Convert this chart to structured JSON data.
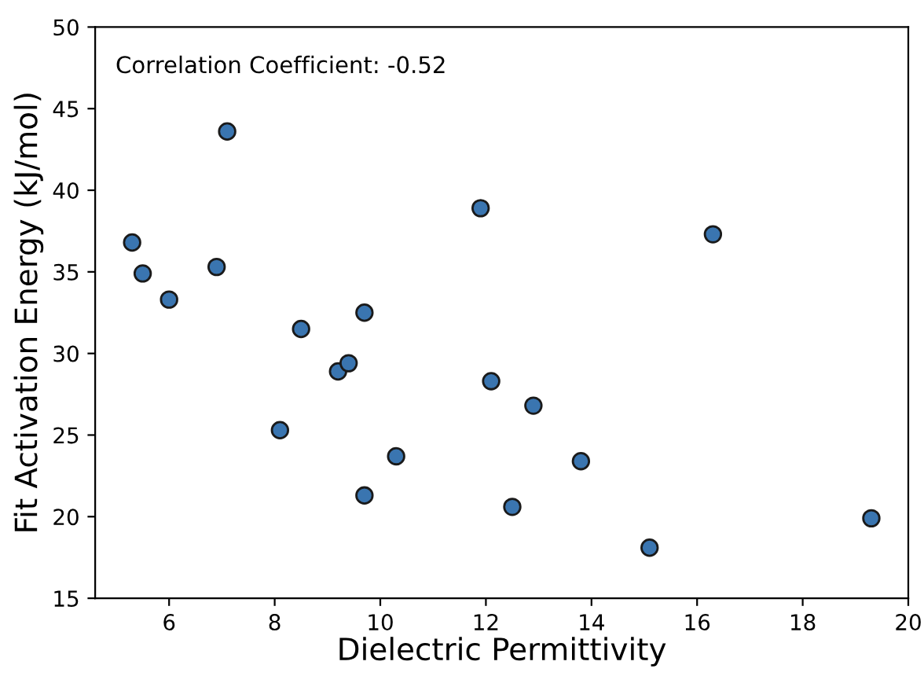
{
  "chart_data": {
    "type": "scatter",
    "xlabel": "Dielectric Permittivity",
    "ylabel": "Fit Activation Energy (kJ/mol)",
    "annotations": [
      "Correlation Coefficient: -0.52"
    ],
    "x": [
      5.3,
      5.5,
      6.0,
      6.9,
      7.1,
      8.1,
      8.5,
      9.2,
      9.4,
      9.7,
      9.7,
      10.3,
      11.9,
      12.1,
      12.5,
      12.9,
      13.8,
      15.1,
      16.3,
      19.3
    ],
    "series": [
      {
        "color": "#3a75b0",
        "values": [
          36.8,
          34.9,
          33.3,
          35.3,
          43.6,
          25.3,
          31.5,
          28.9,
          29.4,
          32.5,
          21.3,
          23.7,
          38.9,
          28.3,
          20.6,
          26.8,
          23.4,
          18.1,
          37.3,
          19.9
        ]
      }
    ],
    "xlim": [
      4.6,
      20
    ],
    "xticks": [
      6,
      8,
      10,
      12,
      14,
      16,
      18,
      20
    ],
    "ylim": [
      15,
      50
    ],
    "yticks": [
      15,
      20,
      25,
      30,
      35,
      40,
      45,
      50
    ],
    "marker": "circle",
    "grid": false,
    "legend": false
  }
}
